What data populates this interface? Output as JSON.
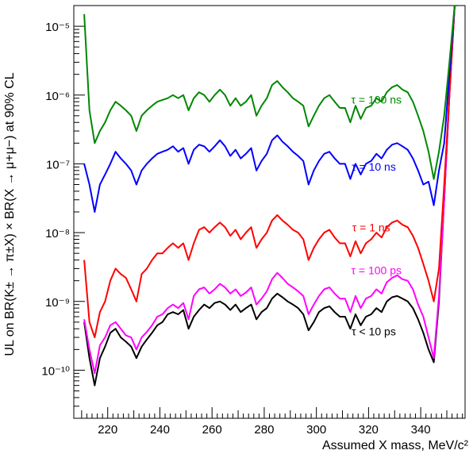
{
  "chart_data": {
    "type": "line",
    "xlabel": "Assumed X mass, MeV/c²",
    "ylabel": "UL on BR(K± → π±X) × BR(X → μ+μ−) at 90% CL",
    "xlim": [
      207,
      357
    ],
    "ylim": [
      2e-11,
      2e-05
    ],
    "y_scale": "log",
    "grid": false,
    "x_ticks": [
      220,
      240,
      260,
      280,
      300,
      320,
      340
    ],
    "y_ticks": [
      {
        "value": 1e-10,
        "label": "10⁻¹⁰"
      },
      {
        "value": 1e-09,
        "label": "10⁻⁹"
      },
      {
        "value": 1e-08,
        "label": "10⁻⁸"
      },
      {
        "value": 1e-07,
        "label": "10⁻⁷"
      },
      {
        "value": 1e-06,
        "label": "10⁻⁶"
      },
      {
        "value": 1e-05,
        "label": "10⁻⁵"
      }
    ],
    "x": [
      211,
      213,
      215,
      217,
      219,
      221,
      223,
      225,
      227,
      229,
      231,
      233,
      235,
      237,
      239,
      241,
      243,
      245,
      247,
      249,
      251,
      253,
      255,
      257,
      259,
      261,
      263,
      265,
      267,
      269,
      271,
      273,
      275,
      277,
      279,
      281,
      283,
      285,
      287,
      289,
      291,
      293,
      295,
      297,
      299,
      301,
      303,
      305,
      307,
      309,
      311,
      313,
      315,
      317,
      319,
      321,
      323,
      325,
      327,
      329,
      331,
      333,
      335,
      337,
      339,
      341,
      343,
      345,
      347,
      349,
      351,
      353,
      354
    ],
    "series": [
      {
        "name": "τ < 10 ps",
        "color": "#000000",
        "values": [
          5e-10,
          1.5e-10,
          6e-11,
          1.5e-10,
          2.2e-10,
          3.5e-10,
          4e-10,
          3e-10,
          2.6e-10,
          2.2e-10,
          1.5e-10,
          2.2e-10,
          2.8e-10,
          3.5e-10,
          4.5e-10,
          5e-10,
          6.5e-10,
          7e-10,
          6.5e-10,
          7.5e-10,
          4e-10,
          6e-10,
          7.5e-10,
          9e-10,
          8e-10,
          9.5e-10,
          1e-09,
          9e-10,
          7.5e-10,
          9e-10,
          7e-10,
          8e-10,
          9e-10,
          5.5e-10,
          7e-10,
          8e-10,
          1.1e-09,
          1.3e-09,
          1.15e-09,
          1e-09,
          9e-10,
          8e-10,
          6.5e-10,
          3.8e-10,
          5e-10,
          7e-10,
          8e-10,
          8.5e-10,
          7e-10,
          6e-10,
          6e-10,
          4e-10,
          6.5e-10,
          4.5e-10,
          6e-10,
          6.5e-10,
          8e-10,
          7e-10,
          1e-09,
          1.15e-09,
          1.2e-09,
          1.1e-09,
          1e-09,
          8e-10,
          5.5e-10,
          3.5e-10,
          2e-10,
          1.3e-10,
          1e-09,
          3e-08,
          1e-06,
          2e-05,
          2e-05
        ]
      },
      {
        "name": "τ = 100 ps",
        "color": "#ff00ff",
        "values": [
          5.5e-10,
          2e-10,
          9e-11,
          2.3e-10,
          3e-10,
          4.5e-10,
          5e-10,
          4e-10,
          3.2e-10,
          3e-10,
          2e-10,
          3e-10,
          3.6e-10,
          4.5e-10,
          6e-10,
          6.5e-10,
          8e-10,
          9e-10,
          8e-10,
          9.5e-10,
          5.5e-10,
          1.2e-09,
          1.5e-09,
          1.6e-09,
          1.3e-09,
          1.5e-09,
          1.8e-09,
          1.6e-09,
          1.3e-09,
          1.5e-09,
          1.2e-09,
          1.35e-09,
          1.6e-09,
          9e-10,
          1.1e-09,
          1.4e-09,
          2.1e-09,
          2.6e-09,
          2.2e-09,
          1.8e-09,
          1.6e-09,
          1.4e-09,
          1.2e-09,
          6.5e-10,
          9e-10,
          1.2e-09,
          1.5e-09,
          1.6e-09,
          1.3e-09,
          1.1e-09,
          1.1e-09,
          7e-10,
          1.2e-09,
          8e-10,
          1.1e-09,
          1.2e-09,
          1.5e-09,
          1.3e-09,
          1.9e-09,
          2.2e-09,
          2.4e-09,
          2.1e-09,
          2e-09,
          1.5e-09,
          9e-10,
          6e-10,
          3e-10,
          1.5e-10,
          1.2e-09,
          3e-08,
          1e-06,
          2e-05,
          2e-05
        ]
      },
      {
        "name": "τ = 1 ns",
        "color": "#ff0000",
        "values": [
          4e-09,
          5e-10,
          3e-10,
          7e-10,
          1e-09,
          2e-09,
          3e-09,
          2.5e-09,
          2.2e-09,
          1.5e-09,
          1e-09,
          2.5e-09,
          3e-09,
          4e-09,
          5e-09,
          5e-09,
          6e-09,
          7e-09,
          6e-09,
          7e-09,
          4e-09,
          7e-09,
          1.1e-08,
          1.2e-08,
          1e-08,
          1.2e-08,
          1.4e-08,
          1.2e-08,
          9e-09,
          1.1e-08,
          8e-09,
          1e-08,
          1.2e-08,
          6e-09,
          8e-09,
          1e-08,
          1.5e-08,
          1.8e-08,
          1.5e-08,
          1.3e-08,
          1.1e-08,
          1e-08,
          8e-09,
          4e-09,
          6e-09,
          8e-09,
          1e-08,
          1.1e-08,
          8.5e-09,
          7e-09,
          7e-09,
          4.5e-09,
          7.5e-09,
          5e-09,
          7e-09,
          8e-09,
          1e-08,
          8.5e-09,
          1.2e-08,
          1.4e-08,
          1.5e-08,
          1.3e-08,
          1.2e-08,
          9e-09,
          6e-09,
          3.5e-09,
          2e-09,
          1e-09,
          3e-09,
          5e-08,
          1e-06,
          2e-05,
          2e-05
        ]
      },
      {
        "name": "τ = 10 ns",
        "color": "#0000ff",
        "values": [
          1e-07,
          5e-08,
          2e-08,
          5e-08,
          7e-08,
          1e-07,
          1.5e-07,
          1.2e-07,
          1e-07,
          8e-08,
          5e-08,
          8e-08,
          1e-07,
          1.2e-07,
          1.4e-07,
          1.5e-07,
          1.6e-07,
          1.8e-07,
          1.5e-07,
          1.7e-07,
          1e-07,
          1.6e-07,
          1.9e-07,
          1.8e-07,
          1.5e-07,
          1.8e-07,
          2.2e-07,
          1.8e-07,
          1.3e-07,
          1.6e-07,
          1.2e-07,
          1.4e-07,
          1.7e-07,
          8e-08,
          1.1e-07,
          1.4e-07,
          2.2e-07,
          2.6e-07,
          2.1e-07,
          1.8e-07,
          1.5e-07,
          1.3e-07,
          1.1e-07,
          5e-08,
          8e-08,
          1.1e-07,
          1.4e-07,
          1.5e-07,
          1.2e-07,
          1e-07,
          1e-07,
          6e-08,
          1e-07,
          7e-08,
          1e-07,
          1.1e-07,
          1.4e-07,
          1.2e-07,
          1.6e-07,
          1.9e-07,
          2e-07,
          1.8e-07,
          1.6e-07,
          1.2e-07,
          8e-08,
          5e-08,
          5.5e-08,
          2.5e-08,
          8e-08,
          2e-07,
          2e-06,
          2e-05,
          2e-05
        ]
      },
      {
        "name": "τ = 100 ns",
        "color": "#008800",
        "values": [
          1.5e-05,
          6e-07,
          2e-07,
          3e-07,
          4e-07,
          6e-07,
          8e-07,
          7e-07,
          6e-07,
          5e-07,
          3e-07,
          5e-07,
          6e-07,
          7e-07,
          8e-07,
          8.5e-07,
          9e-07,
          1e-06,
          9e-07,
          1e-06,
          6e-07,
          9e-07,
          1.1e-06,
          1e-06,
          8e-07,
          1e-06,
          1.2e-06,
          1e-06,
          7e-07,
          9e-07,
          7e-07,
          8e-07,
          1e-06,
          5e-07,
          7e-07,
          9e-07,
          1.4e-06,
          1.6e-06,
          1.3e-06,
          1.1e-06,
          9e-07,
          8e-07,
          7e-07,
          3.5e-07,
          5e-07,
          7e-07,
          9e-07,
          1e-06,
          8e-07,
          6.5e-07,
          6.5e-07,
          4e-07,
          7e-07,
          4.5e-07,
          6.5e-07,
          7e-07,
          9e-07,
          8e-07,
          1.1e-06,
          1.3e-06,
          1.4e-06,
          1.2e-06,
          1.1e-06,
          8e-07,
          5e-07,
          3e-07,
          1.5e-07,
          6e-08,
          1.5e-07,
          5e-07,
          3e-06,
          2e-05,
          2e-05
        ]
      }
    ],
    "labels": [
      {
        "text": "τ = 100 ns",
        "color": "#008800",
        "x": 323,
        "y": 7.5e-07
      },
      {
        "text": "τ = 10 ns",
        "color": "#0000ff",
        "x": 322,
        "y": 8e-08
      },
      {
        "text": "τ = 1 ns",
        "color": "#ff0000",
        "x": 321,
        "y": 1.05e-08
      },
      {
        "text": "τ = 100 ps",
        "color": "#ff00ff",
        "x": 323,
        "y": 2.5e-09
      },
      {
        "text": "τ < 10 ps",
        "color": "#000000",
        "x": 322,
        "y": 3.2e-10
      }
    ]
  }
}
